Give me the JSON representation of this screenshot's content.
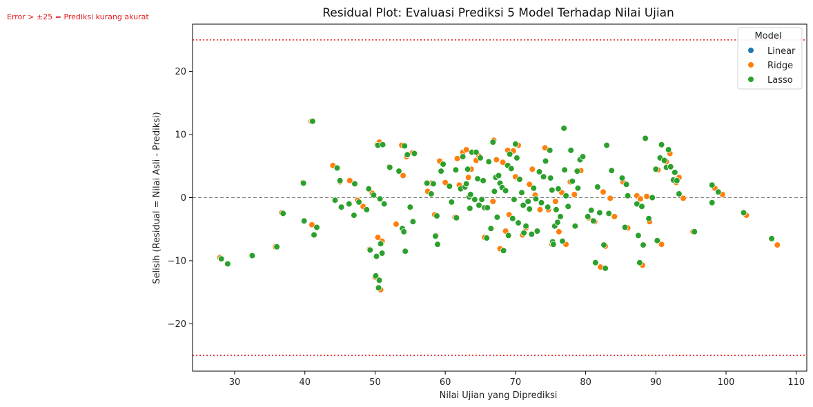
{
  "chart_data": {
    "type": "scatter",
    "title": "Residual Plot: Evaluasi Prediksi 5 Model Terhadap Nilai Ujian",
    "xlabel": "Nilai Ujian yang Diprediksi",
    "ylabel": "Selisih (Residual = Nilai Asli - Prediksi)",
    "xlim": [
      24,
      111.5
    ],
    "ylim": [
      -27.5,
      27.5
    ],
    "xticks": [
      30,
      40,
      50,
      60,
      70,
      80,
      90,
      100,
      110
    ],
    "yticks": [
      -20,
      -10,
      0,
      10,
      20
    ],
    "xtick_labels": [
      "30",
      "40",
      "50",
      "60",
      "70",
      "80",
      "90",
      "100",
      "110"
    ],
    "ytick_labels": [
      "−20",
      "−10",
      "0",
      "10",
      "20"
    ],
    "grid": false,
    "legend_position": "top-right",
    "legend_title": "Model",
    "reference_lines": [
      {
        "y": 0,
        "style": "dashed",
        "color": "#7f7f7f"
      },
      {
        "y": 25,
        "style": "dotted",
        "color": "#e41a1c"
      },
      {
        "y": -25,
        "style": "dotted",
        "color": "#e41a1c"
      }
    ],
    "annotation": {
      "text": "Error > ±25 = Prediksi kurang akurat",
      "color": "#e41a1c"
    },
    "series": [
      {
        "name": "Linear",
        "color": "#1f77b4",
        "points": []
      },
      {
        "name": "Ridge",
        "color": "#ff7f0e",
        "points": [
          [
            27.9,
            -9.5
          ],
          [
            32.4,
            -9.2
          ],
          [
            35.8,
            -7.8
          ],
          [
            36.7,
            -2.4
          ],
          [
            39.7,
            2.4
          ],
          [
            40.9,
            12.1
          ],
          [
            41.0,
            -4.3
          ],
          [
            44.0,
            5.1
          ],
          [
            45.0,
            2.5
          ],
          [
            46.4,
            2.7
          ],
          [
            47.5,
            -0.4
          ],
          [
            48.3,
            -1.4
          ],
          [
            49.2,
            -8.2
          ],
          [
            49.6,
            0.7
          ],
          [
            50.0,
            -12.6
          ],
          [
            50.3,
            8.4
          ],
          [
            50.4,
            -6.3
          ],
          [
            50.5,
            -14.2
          ],
          [
            50.6,
            8.8
          ],
          [
            50.8,
            -14.6
          ],
          [
            51.0,
            -6.9
          ],
          [
            52.0,
            4.9
          ],
          [
            53.0,
            -4.2
          ],
          [
            53.8,
            8.3
          ],
          [
            54.0,
            3.5
          ],
          [
            54.5,
            6.5
          ],
          [
            55.3,
            7.1
          ],
          [
            57.5,
            1.0
          ],
          [
            58.0,
            2.3
          ],
          [
            58.5,
            -2.7
          ],
          [
            58.7,
            -6.0
          ],
          [
            59.2,
            5.8
          ],
          [
            60.0,
            2.4
          ],
          [
            61.4,
            -3.1
          ],
          [
            61.7,
            6.2
          ],
          [
            62.0,
            2.0
          ],
          [
            62.5,
            7.2
          ],
          [
            63.0,
            7.6
          ],
          [
            63.3,
            3.2
          ],
          [
            63.7,
            4.5
          ],
          [
            64.4,
            5.9
          ],
          [
            64.8,
            6.6
          ],
          [
            65.6,
            -6.3
          ],
          [
            66.6,
            -4.9
          ],
          [
            66.8,
            -0.6
          ],
          [
            66.9,
            9.1
          ],
          [
            67.3,
            6.0
          ],
          [
            67.8,
            -8.1
          ],
          [
            68.2,
            5.6
          ],
          [
            68.6,
            -5.3
          ],
          [
            68.9,
            7.5
          ],
          [
            69.1,
            -2.7
          ],
          [
            69.7,
            7.4
          ],
          [
            70.0,
            3.3
          ],
          [
            70.4,
            8.3
          ],
          [
            71.0,
            -5.9
          ],
          [
            71.5,
            -4.8
          ],
          [
            72.0,
            2.1
          ],
          [
            72.4,
            4.5
          ],
          [
            72.8,
            0.4
          ],
          [
            73.5,
            -1.9
          ],
          [
            74.2,
            7.9
          ],
          [
            74.7,
            -1.9
          ],
          [
            75.2,
            -7.4
          ],
          [
            75.7,
            -0.6
          ],
          [
            76.2,
            -5.4
          ],
          [
            76.6,
            0.8
          ],
          [
            77.2,
            -7.4
          ],
          [
            77.8,
            2.5
          ],
          [
            78.4,
            0.5
          ],
          [
            78.7,
            4.2
          ],
          [
            79.3,
            4.3
          ],
          [
            80.4,
            -3.2
          ],
          [
            81.3,
            -3.8
          ],
          [
            82.1,
            -11.0
          ],
          [
            82.5,
            0.9
          ],
          [
            82.8,
            -7.7
          ],
          [
            83.5,
            -0.1
          ],
          [
            84.1,
            -3.0
          ],
          [
            85.3,
            2.5
          ],
          [
            86.0,
            -4.8
          ],
          [
            87.3,
            0.3
          ],
          [
            87.8,
            -0.2
          ],
          [
            88.1,
            -10.7
          ],
          [
            88.7,
            0.2
          ],
          [
            89.1,
            -3.8
          ],
          [
            90.3,
            4.4
          ],
          [
            90.8,
            -7.4
          ],
          [
            91.5,
            5.7
          ],
          [
            92.0,
            7.0
          ],
          [
            92.6,
            4.0
          ],
          [
            92.9,
            2.4
          ],
          [
            93.3,
            3.2
          ],
          [
            93.9,
            -0.1
          ],
          [
            95.3,
            -5.4
          ],
          [
            98.4,
            1.5
          ],
          [
            99.5,
            0.5
          ],
          [
            102.9,
            -2.8
          ],
          [
            107.3,
            -7.5
          ]
        ]
      },
      {
        "name": "Lasso",
        "color": "#2ca02c",
        "points": [
          [
            28.1,
            -9.7
          ],
          [
            29.0,
            -10.5
          ],
          [
            32.5,
            -9.2
          ],
          [
            36.0,
            -7.8
          ],
          [
            36.9,
            -2.5
          ],
          [
            39.8,
            2.3
          ],
          [
            39.9,
            -3.7
          ],
          [
            41.1,
            12.1
          ],
          [
            41.3,
            -5.9
          ],
          [
            41.7,
            -4.7
          ],
          [
            44.3,
            -0.4
          ],
          [
            44.6,
            4.7
          ],
          [
            45.0,
            2.7
          ],
          [
            45.2,
            -1.5
          ],
          [
            46.3,
            -1.0
          ],
          [
            47.0,
            -2.8
          ],
          [
            47.1,
            2.2
          ],
          [
            47.7,
            -0.7
          ],
          [
            48.8,
            -1.9
          ],
          [
            49.1,
            1.4
          ],
          [
            49.3,
            -8.3
          ],
          [
            49.8,
            0.4
          ],
          [
            50.1,
            -12.4
          ],
          [
            50.2,
            -9.3
          ],
          [
            50.4,
            8.3
          ],
          [
            50.5,
            -14.3
          ],
          [
            50.6,
            -13.1
          ],
          [
            50.7,
            -0.2
          ],
          [
            50.8,
            -7.3
          ],
          [
            51.0,
            -8.8
          ],
          [
            51.1,
            8.4
          ],
          [
            51.3,
            -1.0
          ],
          [
            52.1,
            4.8
          ],
          [
            53.4,
            4.2
          ],
          [
            53.9,
            -4.9
          ],
          [
            54.1,
            -5.4
          ],
          [
            54.2,
            8.2
          ],
          [
            54.3,
            -8.5
          ],
          [
            54.6,
            6.8
          ],
          [
            55.0,
            -1.5
          ],
          [
            55.4,
            -3.8
          ],
          [
            55.6,
            7.0
          ],
          [
            57.4,
            2.3
          ],
          [
            58.0,
            0.6
          ],
          [
            58.3,
            2.2
          ],
          [
            58.6,
            -6.1
          ],
          [
            58.8,
            -2.9
          ],
          [
            58.9,
            -7.4
          ],
          [
            59.4,
            4.2
          ],
          [
            59.7,
            5.3
          ],
          [
            60.6,
            1.8
          ],
          [
            60.9,
            -0.7
          ],
          [
            61.5,
            4.4
          ],
          [
            61.6,
            -3.2
          ],
          [
            62.2,
            1.4
          ],
          [
            62.5,
            6.5
          ],
          [
            62.8,
            1.7
          ],
          [
            63.0,
            2.2
          ],
          [
            63.2,
            4.5
          ],
          [
            63.4,
            0.1
          ],
          [
            63.5,
            -1.7
          ],
          [
            63.6,
            0.5
          ],
          [
            63.8,
            7.2
          ],
          [
            64.2,
            -0.3
          ],
          [
            64.4,
            7.2
          ],
          [
            64.6,
            3.0
          ],
          [
            64.8,
            -1.2
          ],
          [
            65.0,
            6.3
          ],
          [
            65.2,
            -0.3
          ],
          [
            65.4,
            2.7
          ],
          [
            65.6,
            -1.6
          ],
          [
            65.9,
            -6.4
          ],
          [
            66.0,
            -1.6
          ],
          [
            66.2,
            5.7
          ],
          [
            66.5,
            -4.9
          ],
          [
            66.8,
            8.8
          ],
          [
            67.0,
            1.0
          ],
          [
            67.2,
            3.2
          ],
          [
            67.4,
            -3.1
          ],
          [
            67.6,
            3.5
          ],
          [
            67.8,
            2.3
          ],
          [
            68.1,
            1.6
          ],
          [
            68.3,
            -8.4
          ],
          [
            68.6,
            1.1
          ],
          [
            68.9,
            5.1
          ],
          [
            69.0,
            -6.0
          ],
          [
            69.2,
            6.9
          ],
          [
            69.4,
            4.6
          ],
          [
            69.6,
            -3.3
          ],
          [
            69.8,
            -0.3
          ],
          [
            70.0,
            8.5
          ],
          [
            70.2,
            6.3
          ],
          [
            70.4,
            -4.0
          ],
          [
            70.6,
            2.9
          ],
          [
            70.9,
            0.8
          ],
          [
            71.1,
            -1.2
          ],
          [
            71.2,
            -5.6
          ],
          [
            71.5,
            -4.5
          ],
          [
            71.8,
            -0.6
          ],
          [
            72.0,
            -1.8
          ],
          [
            72.3,
            -5.8
          ],
          [
            72.6,
            1.5
          ],
          [
            72.9,
            -0.2
          ],
          [
            73.1,
            -5.3
          ],
          [
            73.4,
            4.1
          ],
          [
            73.7,
            -0.8
          ],
          [
            74.0,
            3.3
          ],
          [
            74.3,
            5.8
          ],
          [
            74.6,
            -1.5
          ],
          [
            74.9,
            7.5
          ],
          [
            75.0,
            3.1
          ],
          [
            75.2,
            1.2
          ],
          [
            75.3,
            -7.0
          ],
          [
            75.4,
            -7.4
          ],
          [
            75.6,
            -4.5
          ],
          [
            75.8,
            -1.9
          ],
          [
            76.0,
            -3.9
          ],
          [
            76.1,
            1.4
          ],
          [
            76.4,
            -3.0
          ],
          [
            76.7,
            -6.9
          ],
          [
            76.9,
            11.0
          ],
          [
            77.0,
            4.4
          ],
          [
            77.2,
            0.3
          ],
          [
            77.5,
            -1.4
          ],
          [
            77.9,
            7.5
          ],
          [
            78.1,
            2.6
          ],
          [
            78.5,
            -4.5
          ],
          [
            78.8,
            4.2
          ],
          [
            78.9,
            1.5
          ],
          [
            79.2,
            6.0
          ],
          [
            79.6,
            6.5
          ],
          [
            80.3,
            -3.0
          ],
          [
            80.8,
            -2.0
          ],
          [
            81.1,
            -3.7
          ],
          [
            81.4,
            -10.3
          ],
          [
            81.7,
            1.7
          ],
          [
            82.0,
            -2.4
          ],
          [
            82.6,
            -7.5
          ],
          [
            82.8,
            -11.2
          ],
          [
            83.0,
            8.3
          ],
          [
            83.3,
            -2.5
          ],
          [
            83.7,
            4.3
          ],
          [
            85.2,
            3.1
          ],
          [
            85.6,
            -4.7
          ],
          [
            85.8,
            2.1
          ],
          [
            86.0,
            0.3
          ],
          [
            87.3,
            -1.0
          ],
          [
            87.5,
            -6.0
          ],
          [
            87.7,
            -10.3
          ],
          [
            88.0,
            -1.4
          ],
          [
            88.2,
            -7.5
          ],
          [
            88.5,
            9.4
          ],
          [
            89.0,
            -3.3
          ],
          [
            89.5,
            0.0
          ],
          [
            90.0,
            4.5
          ],
          [
            90.2,
            -6.8
          ],
          [
            90.6,
            6.3
          ],
          [
            90.8,
            8.4
          ],
          [
            91.2,
            5.9
          ],
          [
            91.5,
            4.8
          ],
          [
            91.8,
            7.6
          ],
          [
            92.1,
            4.9
          ],
          [
            92.5,
            2.8
          ],
          [
            92.7,
            4.0
          ],
          [
            93.0,
            2.7
          ],
          [
            93.3,
            0.6
          ],
          [
            95.5,
            -5.4
          ],
          [
            98.0,
            2.0
          ],
          [
            98.0,
            -0.8
          ],
          [
            98.9,
            0.9
          ],
          [
            102.5,
            -2.4
          ],
          [
            106.5,
            -6.5
          ]
        ]
      }
    ]
  }
}
